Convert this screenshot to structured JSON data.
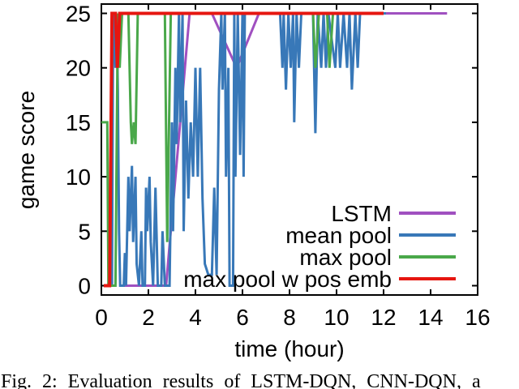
{
  "figure": {
    "caption": "Fig. 2: Evaluation results of LSTM-DQN, CNN-DQN, a"
  },
  "chart_data": {
    "type": "line",
    "title": "",
    "xlabel": "time (hour)",
    "ylabel": "game score",
    "xlim": [
      0,
      16
    ],
    "ylim": [
      0,
      25
    ],
    "xticks": [
      0,
      2,
      4,
      6,
      8,
      10,
      12,
      14,
      16
    ],
    "yticks": [
      0,
      5,
      10,
      15,
      20,
      25
    ],
    "grid": false,
    "legend_position": "inside-bottom-right",
    "background_color": "#ffffff",
    "axis_color": "#000000",
    "series": [
      {
        "name": "LSTM",
        "color": "#a050c0",
        "width": 3,
        "points": [
          [
            0.9,
            0
          ],
          [
            2.75,
            0
          ],
          [
            3.75,
            25
          ],
          [
            4.7,
            25
          ],
          [
            5.75,
            20
          ],
          [
            6.7,
            25
          ],
          [
            14.7,
            25
          ]
        ]
      },
      {
        "name": "mean pool",
        "color": "#3878b8",
        "width": 3,
        "points": [
          [
            0.35,
            0
          ],
          [
            0.45,
            0
          ],
          [
            0.5,
            25
          ],
          [
            0.55,
            25
          ],
          [
            0.6,
            20
          ],
          [
            0.65,
            25
          ],
          [
            0.7,
            18
          ],
          [
            0.75,
            5
          ],
          [
            0.8,
            0
          ],
          [
            0.95,
            0
          ],
          [
            1.0,
            3
          ],
          [
            1.05,
            0
          ],
          [
            1.15,
            10
          ],
          [
            1.2,
            5
          ],
          [
            1.3,
            11
          ],
          [
            1.35,
            4
          ],
          [
            1.45,
            10
          ],
          [
            1.5,
            2
          ],
          [
            1.6,
            0
          ],
          [
            1.7,
            5
          ],
          [
            1.75,
            0
          ],
          [
            1.85,
            0
          ],
          [
            1.9,
            9
          ],
          [
            1.95,
            5
          ],
          [
            2.05,
            10
          ],
          [
            2.1,
            4
          ],
          [
            2.2,
            0
          ],
          [
            2.3,
            9
          ],
          [
            2.4,
            0
          ],
          [
            2.55,
            0
          ],
          [
            2.6,
            5
          ],
          [
            2.7,
            0
          ],
          [
            2.9,
            0
          ],
          [
            3.0,
            15
          ],
          [
            3.05,
            5
          ],
          [
            3.15,
            20
          ],
          [
            3.2,
            13
          ],
          [
            3.3,
            25
          ],
          [
            3.35,
            15
          ],
          [
            3.45,
            25
          ],
          [
            3.5,
            5
          ],
          [
            3.6,
            17
          ],
          [
            3.7,
            8
          ],
          [
            3.8,
            15
          ],
          [
            3.9,
            10
          ],
          [
            4.0,
            20
          ],
          [
            4.1,
            10
          ],
          [
            4.2,
            20
          ],
          [
            4.3,
            8
          ],
          [
            4.4,
            2
          ],
          [
            4.55,
            1
          ],
          [
            4.7,
            1
          ],
          [
            4.8,
            9
          ],
          [
            4.9,
            1
          ],
          [
            5.0,
            18
          ],
          [
            5.1,
            25
          ],
          [
            5.15,
            18
          ],
          [
            5.25,
            25
          ],
          [
            5.3,
            10
          ],
          [
            5.4,
            20
          ],
          [
            5.45,
            0
          ],
          [
            5.6,
            0
          ],
          [
            5.65,
            25
          ],
          [
            5.7,
            10
          ],
          [
            5.8,
            25
          ],
          [
            5.9,
            12
          ],
          [
            6.0,
            25
          ],
          [
            6.05,
            10
          ],
          [
            6.1,
            25
          ],
          [
            7.6,
            25
          ],
          [
            7.7,
            20
          ],
          [
            7.75,
            25
          ],
          [
            7.85,
            18
          ],
          [
            7.95,
            25
          ],
          [
            8.05,
            20
          ],
          [
            8.15,
            25
          ],
          [
            8.2,
            15
          ],
          [
            8.3,
            25
          ],
          [
            8.4,
            20
          ],
          [
            8.5,
            25
          ],
          [
            9.0,
            25
          ],
          [
            9.1,
            14
          ],
          [
            9.2,
            25
          ],
          [
            9.35,
            20
          ],
          [
            9.45,
            25
          ],
          [
            9.55,
            20
          ],
          [
            9.65,
            25
          ],
          [
            9.95,
            20
          ],
          [
            10.05,
            25
          ],
          [
            10.15,
            20
          ],
          [
            10.3,
            25
          ],
          [
            10.45,
            20
          ],
          [
            10.55,
            25
          ],
          [
            10.65,
            18
          ],
          [
            10.8,
            25
          ],
          [
            10.9,
            20
          ],
          [
            11.0,
            25
          ],
          [
            12.1,
            25
          ]
        ]
      },
      {
        "name": "max pool",
        "color": "#4aa84a",
        "width": 3,
        "points": [
          [
            0,
            15
          ],
          [
            0.25,
            15
          ],
          [
            0.3,
            0
          ],
          [
            0.6,
            0
          ],
          [
            0.7,
            25
          ],
          [
            0.78,
            20
          ],
          [
            0.88,
            25
          ],
          [
            1.15,
            25
          ],
          [
            1.25,
            15
          ],
          [
            1.3,
            13
          ],
          [
            1.38,
            15
          ],
          [
            1.45,
            13
          ],
          [
            1.55,
            25
          ],
          [
            2.7,
            25
          ],
          [
            2.8,
            4
          ],
          [
            2.95,
            25
          ],
          [
            9.0,
            25
          ],
          [
            9.1,
            20
          ],
          [
            9.25,
            25
          ],
          [
            9.6,
            25
          ],
          [
            9.7,
            20
          ],
          [
            9.85,
            25
          ],
          [
            12.0,
            25
          ]
        ]
      },
      {
        "name": "max pool w pos emb",
        "color": "#e61610",
        "width": 4,
        "points": [
          [
            0.1,
            0
          ],
          [
            0.35,
            0
          ],
          [
            0.45,
            25
          ],
          [
            0.6,
            25
          ],
          [
            0.68,
            20
          ],
          [
            0.78,
            25
          ],
          [
            12.0,
            25
          ]
        ]
      }
    ]
  }
}
